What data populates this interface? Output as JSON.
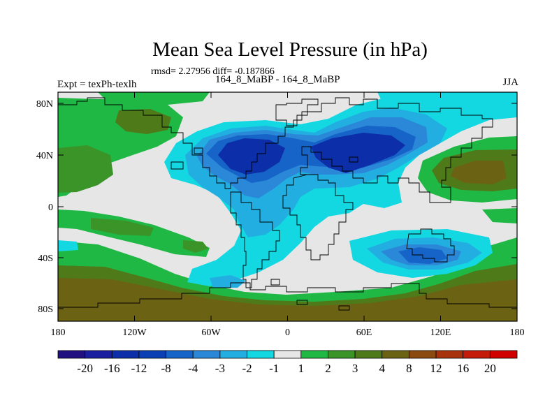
{
  "title": "Mean Sea Level Pressure (in hPa)",
  "subtitle": "rmsd= 2.27956 diff= -0.187866",
  "left_label": "Expt = texPh-texlh",
  "center_label": "164_8_MaBP - 164_8_MaBP",
  "right_label": "JJA",
  "y_ticks": [
    "80N",
    "40N",
    "0",
    "40S",
    "80S"
  ],
  "x_ticks": [
    "180",
    "120W",
    "60W",
    "0",
    "60E",
    "120E",
    "180"
  ],
  "colorbar": {
    "labels": [
      "-20",
      "-16",
      "-12",
      "-8",
      "-4",
      "-3",
      "-2",
      "-1",
      "1",
      "2",
      "3",
      "4",
      "8",
      "12",
      "16",
      "20"
    ],
    "colors": [
      "#201080",
      "#1a1fa0",
      "#0c2ea8",
      "#0a40b4",
      "#1764c8",
      "#2b88d8",
      "#22aee0",
      "#13d8e2",
      "#e6e6e6",
      "#20b845",
      "#3a9428",
      "#4f7a1a",
      "#6b6214",
      "#8a4a10",
      "#a8320c",
      "#c41c08",
      "#d00000"
    ]
  },
  "field_colors": {
    "background": "#e6e6e6",
    "neg1": "#13d8e2",
    "neg2": "#22aee0",
    "neg3": "#2b88d8",
    "neg4": "#1764c8",
    "neg8": "#0c2ea8",
    "pos1": "#20b845",
    "pos2": "#3a9428",
    "pos3": "#4f7a1a",
    "pos4": "#6b6214",
    "pos8": "#8a4a10"
  }
}
